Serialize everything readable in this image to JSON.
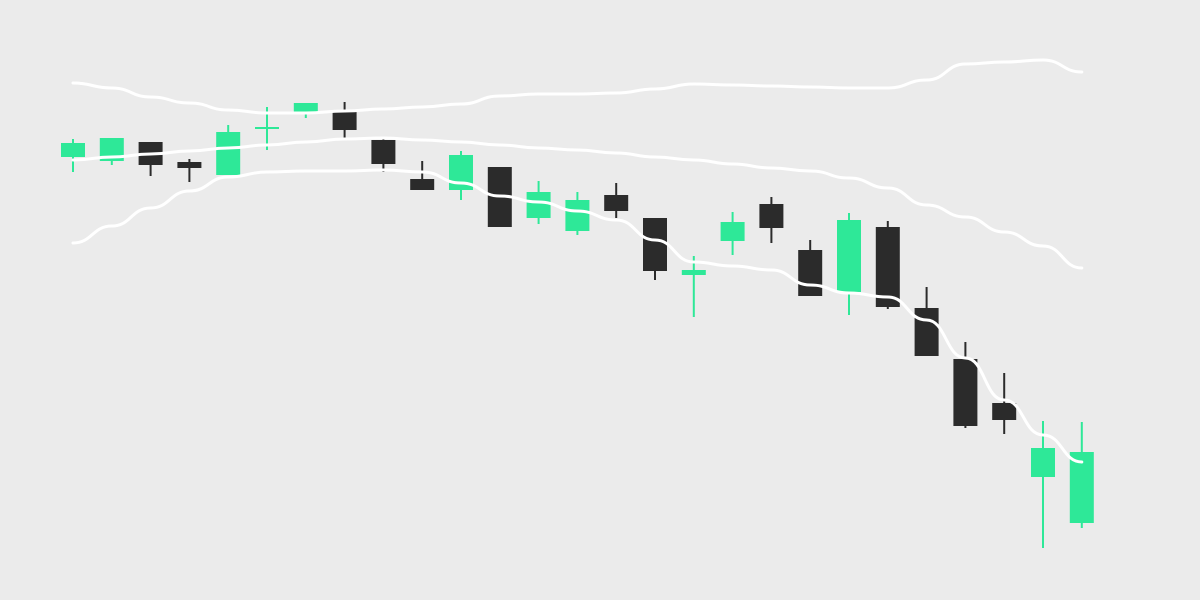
{
  "chart_data": {
    "type": "candlestick",
    "title": "",
    "xlabel": "",
    "ylabel": "",
    "axes_visible": false,
    "grid": false,
    "ylim": [
      0,
      600
    ],
    "colors": {
      "background": "#ebebeb",
      "up": "#2ee898",
      "down": "#2b2b2b",
      "lines": "#ffffff"
    },
    "candles": [
      {
        "o": 443,
        "h": 461,
        "l": 428,
        "c": 457
      },
      {
        "o": 439,
        "h": 462,
        "l": 435,
        "c": 462
      },
      {
        "o": 458,
        "h": 458,
        "l": 424,
        "c": 435
      },
      {
        "o": 438,
        "h": 441,
        "l": 418,
        "c": 432
      },
      {
        "o": 425,
        "h": 475,
        "l": 425,
        "c": 468
      },
      {
        "o": 471,
        "h": 493,
        "l": 450,
        "c": 473
      },
      {
        "o": 486,
        "h": 497,
        "l": 482,
        "c": 497
      },
      {
        "o": 490,
        "h": 498,
        "l": 462,
        "c": 470
      },
      {
        "o": 460,
        "h": 463,
        "l": 428,
        "c": 436
      },
      {
        "o": 421,
        "h": 439,
        "l": 410,
        "c": 410
      },
      {
        "o": 410,
        "h": 449,
        "l": 400,
        "c": 445
      },
      {
        "o": 433,
        "h": 433,
        "l": 373,
        "c": 373
      },
      {
        "o": 382,
        "h": 419,
        "l": 376,
        "c": 408
      },
      {
        "o": 369,
        "h": 408,
        "l": 365,
        "c": 400
      },
      {
        "o": 405,
        "h": 417,
        "l": 382,
        "c": 389
      },
      {
        "o": 382,
        "h": 382,
        "l": 320,
        "c": 329
      },
      {
        "o": 325,
        "h": 344,
        "l": 283,
        "c": 330
      },
      {
        "o": 359,
        "h": 388,
        "l": 345,
        "c": 378
      },
      {
        "o": 396,
        "h": 403,
        "l": 357,
        "c": 372
      },
      {
        "o": 350,
        "h": 360,
        "l": 304,
        "c": 304
      },
      {
        "o": 308,
        "h": 387,
        "l": 285,
        "c": 380
      },
      {
        "o": 373,
        "h": 379,
        "l": 291,
        "c": 293
      },
      {
        "o": 292,
        "h": 313,
        "l": 244,
        "c": 244
      },
      {
        "o": 241,
        "h": 258,
        "l": 172,
        "c": 174
      },
      {
        "o": 197,
        "h": 227,
        "l": 166,
        "c": 180
      },
      {
        "o": 123,
        "h": 179,
        "l": 52,
        "c": 152
      },
      {
        "o": 77,
        "h": 178,
        "l": 72,
        "c": 148
      }
    ],
    "lines": [
      {
        "values": [
          517,
          512,
          503,
          497,
          490,
          487,
          487,
          489,
          491,
          493,
          496,
          504,
          506,
          506,
          507,
          511,
          516,
          515,
          514,
          513,
          512,
          512,
          520,
          536,
          538,
          540,
          528
        ]
      },
      {
        "values": [
          440,
          443,
          446,
          449,
          452,
          455,
          458,
          461,
          462,
          460,
          458,
          455,
          452,
          450,
          447,
          443,
          440,
          436,
          432,
          429,
          422,
          412,
          395,
          383,
          368,
          354,
          332
        ]
      },
      {
        "values": [
          357,
          374,
          392,
          409,
          423,
          428,
          429,
          429,
          430,
          428,
          417,
          404,
          398,
          389,
          380,
          360,
          338,
          334,
          330,
          315,
          307,
          303,
          280,
          242,
          200,
          165,
          138
        ]
      }
    ]
  }
}
